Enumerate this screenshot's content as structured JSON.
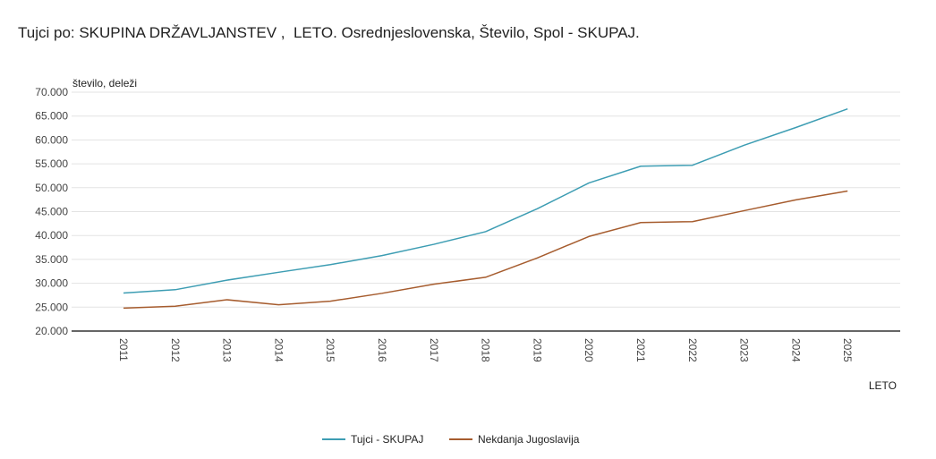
{
  "chart_data": {
    "type": "line",
    "title": "Tujci po: SKUPINA DRŽAVLJANSTEV ,  LETO. Osrednjeslovenska, Število, Spol - SKUPAJ.",
    "xlabel": "LETO",
    "ylabel": "število, deleži",
    "ylim": [
      20000,
      70000
    ],
    "y_ticks": [
      20000,
      25000,
      30000,
      35000,
      40000,
      45000,
      50000,
      55000,
      60000,
      65000,
      70000
    ],
    "y_tick_labels": [
      "20.000",
      "25.000",
      "30.000",
      "35.000",
      "40.000",
      "45.000",
      "50.000",
      "55.000",
      "60.000",
      "65.000",
      "70.000"
    ],
    "grid": true,
    "legend_position": "bottom",
    "x": [
      "2011",
      "2012",
      "2013",
      "2014",
      "2015",
      "2016",
      "2017",
      "2018",
      "2019",
      "2020",
      "2021",
      "2022",
      "2023",
      "2024",
      "2025"
    ],
    "series": [
      {
        "name": "Tujci - SKUPAJ",
        "color": "#3d9db3",
        "values": [
          27950,
          28650,
          30650,
          32300,
          33900,
          35800,
          38150,
          40800,
          45600,
          51000,
          54500,
          54700,
          58900,
          62600,
          66500
        ]
      },
      {
        "name": "Nekdanja Jugoslavija",
        "color": "#a65c2e",
        "values": [
          24800,
          25200,
          26550,
          25500,
          26250,
          27900,
          29800,
          31250,
          35300,
          39800,
          42700,
          42900,
          45200,
          47450,
          49300
        ]
      }
    ]
  }
}
